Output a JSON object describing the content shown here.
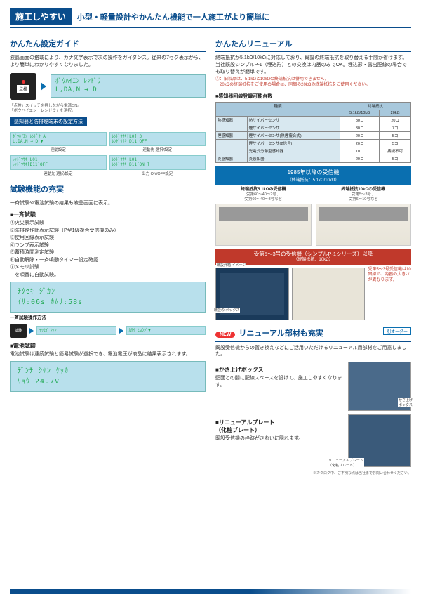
{
  "header": {
    "tag": "施工しやすい",
    "sub": "小型・軽量設計やかんたん機能で一人施工がより簡単に"
  },
  "left": {
    "guide": {
      "title": "かんたん設定ガイド",
      "desc": "液晶画面の搭載により、カナ文字表示で次の操作をガイダンス。従来の7セグ表示から、より簡単にわかりやすくなりました。",
      "tenken": "点検",
      "lcd1_l1": "ﾎﾞｳﾊｲｴﾝ  ﾚﾝﾄﾞｳ",
      "lcd1_l2": "L,DA,N → D",
      "note1": "「点検」スイッチを押しながら電源ON。",
      "note2": "「ボウハイエン　レンドウ」を選択。",
      "banner": "感知器と防排煙端末の設定方法",
      "g": [
        {
          "l1": "ﾎﾞｳﾊｲｴﾝ ﾚﾝﾄﾞｳ  A",
          "l2": "L,DA,N → D    ▼",
          "cap": "連動設定"
        },
        {
          "l1": "ﾚﾝﾄﾞｳｻｷ[L0]  3",
          "l2": "ﾚﾝﾄﾞｳｻｷ D11 OFF",
          "cap": "連動先 選択/設定"
        },
        {
          "l1": "ﾚﾝﾄﾞｳｻｷ L01",
          "l2": "ﾚﾝﾄﾞｳｻｷ[D11]OFF",
          "cap": "連動先 選択/設定"
        },
        {
          "l1": "ﾚﾝﾄﾞｳｻｷ L01",
          "l2": "ﾚﾝﾄﾞｳｻｷ D11[ON ]",
          "cap": "出力 ON/OFF設定"
        }
      ]
    },
    "test": {
      "title": "試験機能の充実",
      "desc": "一斉試験や電池試験の結果も液晶画面に表示。",
      "h1": "■一斉試験",
      "items": [
        "①火災表示試験",
        "②防排煙作動表示試験（P型1級複合受信機のみ）",
        "③使用回線表示試験",
        "④ランプ表示試験",
        "⑤蓄積時間測定試験",
        "⑥自動解除・一斉鳴動タイマー設定確認",
        "⑦メモリ試験",
        "　を順番に自動試験。"
      ],
      "lcd2_l1": "ﾁｸｾｷ  ｼﾞｶﾝ",
      "lcd2_l2": "ｲﾘ:06s  ｶﾑﾘ:58s",
      "flow_h": "一斉試験操作方法",
      "flow_btn": "試験",
      "flow_lcd1": "ｲｯｾｲ ｼｹﾝ",
      "flow_lcd2": "ｶｻｲ ﾋｮｳｼﾞ▼",
      "h2": "■電池試験",
      "desc2": "電池試験は連続試験と簡易試験が選択でき、電池電圧が液晶に結果表示されます。",
      "lcd3_l1": "ﾃﾞﾝﾁ ｼｹﾝ  ｹｯｶ",
      "lcd3_l2": "ﾘｮｳ     24.7V"
    }
  },
  "right": {
    "renewal": {
      "title": "かんたんリニューアル",
      "desc": "終端抵抗が5.1kΩ/10kΩに対応しており、既設の終端抵抗を取り替える手間が省けます。当社既設シンプルP-1（埋込形）との交換は内器のみでOK。埋込形・露出配線の場合でも取り替えが簡単です。",
      "note1": "①：旧製品は、5.1kΩと10kΩの終端抵抗は併用できません。",
      "note2": "　20kΩの終端抵抗をご使用の場合は、同梱の20kΩの終端抵抗をご使用ください。",
      "tbl_h": "■感知器回線登録可能台数",
      "cols": [
        "種類",
        "5.1kΩ/10kΩ",
        "20kΩ"
      ],
      "rows": [
        {
          "g": "熱感知器",
          "n": "熱サイバーセンサ",
          "a": "80コ",
          "b": "20コ"
        },
        {
          "g": "",
          "n": "煙サイバーセンサ",
          "a": "30コ",
          "b": "7コ"
        },
        {
          "g": "煙感知器",
          "n": "煙サイバーセンサ(熱煙複合式)",
          "a": "20コ",
          "b": "5コ"
        },
        {
          "g": "",
          "n": "煙サイバーセンサ(2信号)",
          "a": "20コ",
          "b": "5コ"
        },
        {
          "g": "",
          "n": "光電式分離型感知器",
          "a": "10コ",
          "b": "接続不可"
        },
        {
          "g": "炎感知器",
          "n": "炎感知器",
          "a": "20コ",
          "b": "5コ"
        }
      ],
      "b1": "1985年以降の受信機",
      "b1s": "（終端抵抗：5.1kΩ/10kΩ）",
      "r1": {
        "t": "終端抵抗5.1kΩの受信機",
        "s": "受第60～40～2号、\n受第60～40～3号など"
      },
      "r2": {
        "t": "終端抵抗10kΩの受信機",
        "s": "受第5～3号、\n受第6～10号など"
      },
      "b2": "受第5～3号の受信機（シンプルP-1シリーズ）以降",
      "b2s": "（終端抵抗：10kΩ）",
      "note3": "受第5～3号受信機は10回線で、内器の大きさが異なります。",
      "lbl1": "既設外箱\nイメージ",
      "lbl2": "既設の\nボックス"
    },
    "parts": {
      "new": "NEW",
      "title": "リニューアル部材も充実",
      "order": "別オーダー",
      "desc": "既設受信機からの置き換えなどにご活用いただけるリニューアル用部材をご用意しました。",
      "h1": "■かさ上げボックス",
      "d1": "壁面との間に配線スペースを設けて、施工しやすくなります。",
      "l1": "かさ上げ\nボックス",
      "h2": "■リニューアルプレート\n（化粧プレート）",
      "d2": "既設受信機の枠跡がきれいに隠れます。",
      "l2": "リニューアルプレート\n（化粧プレート）",
      "foot": "※カタログ中、ご不明な点は当社までお問い合わせください。"
    }
  }
}
